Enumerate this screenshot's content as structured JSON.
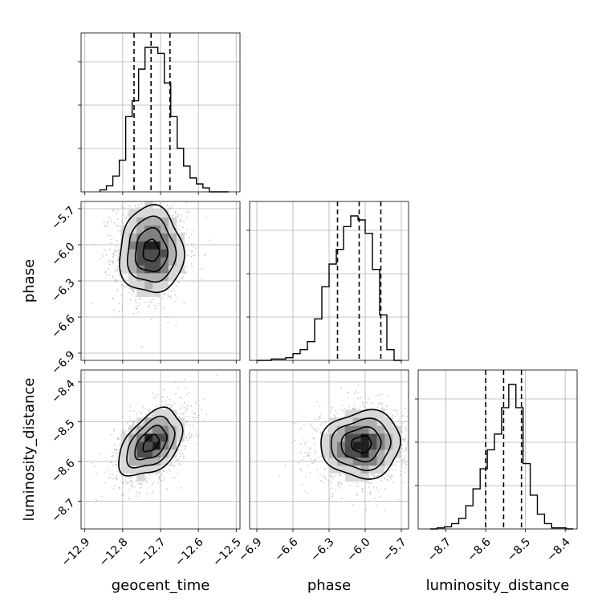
{
  "colors": {
    "hist_line": "#000000",
    "contour_line": "#000000",
    "grid": "#b0b0b0",
    "scatter_point": "#a8a8a8",
    "density_levels": [
      "#d8d8d8",
      "#b0b0b0",
      "#808080",
      "#4d4d4d",
      "#1f1f1f"
    ]
  },
  "chart_data": [
    {
      "type": "histogram",
      "panel": "geocent_time",
      "xlabel": "",
      "bin_range": [
        -12.86,
        -12.52
      ],
      "counts": [
        1,
        3,
        8,
        16,
        38,
        46,
        62,
        73,
        73,
        70,
        55,
        38,
        22,
        13,
        7,
        4,
        2,
        0,
        0,
        0
      ],
      "quantiles": [
        -12.77,
        -12.725,
        -12.675
      ],
      "xlim": [
        -12.91,
        -12.49
      ],
      "xticks": [
        -12.9,
        -12.8,
        -12.7,
        -12.6,
        -12.5
      ],
      "grid": true
    },
    {
      "type": "histogram",
      "panel": "phase",
      "xlabel": "",
      "bin_range": [
        -6.9,
        -5.7
      ],
      "counts": [
        0,
        0,
        1,
        1,
        2,
        5,
        8,
        14,
        31,
        55,
        72,
        83,
        100,
        108,
        105,
        95,
        68,
        34,
        8,
        0
      ],
      "quantiles": [
        -6.23,
        -6.05,
        -5.87
      ],
      "xlim": [
        -6.96,
        -5.64
      ],
      "xticks": [
        -6.9,
        -6.6,
        -6.3,
        -6.0,
        -5.7
      ],
      "grid": true
    },
    {
      "type": "histogram",
      "panel": "luminosity_distance",
      "xlabel": "luminosity_distance",
      "bin_range": [
        -8.74,
        -8.38
      ],
      "counts": [
        0,
        1,
        2,
        5,
        10,
        22,
        38,
        57,
        75,
        90,
        115,
        137,
        115,
        62,
        32,
        14,
        5,
        1,
        1,
        0
      ],
      "quantiles": [
        -8.6,
        -8.555,
        -8.51
      ],
      "xlim": [
        -8.77,
        -8.37
      ],
      "xticks": [
        -8.7,
        -8.6,
        -8.5,
        -8.4
      ],
      "grid": true
    },
    {
      "type": "heatmap",
      "panel": "phase vs geocent_time",
      "xlabel": "",
      "ylabel": "phase",
      "x_param": "geocent_time",
      "y_param": "phase",
      "mean": [
        -12.725,
        -6.05
      ],
      "std": [
        0.042,
        0.18
      ],
      "corr": 0.0,
      "xlim": [
        -12.91,
        -12.49
      ],
      "ylim": [
        -6.96,
        -5.64
      ],
      "xticks": [
        -12.9,
        -12.8,
        -12.7,
        -12.6,
        -12.5
      ],
      "yticks": [
        -5.7,
        -6.0,
        -6.3,
        -6.6,
        -6.9
      ],
      "contour_sigma": [
        0.5,
        1.0,
        1.5,
        2.0
      ],
      "grid": true
    },
    {
      "type": "heatmap",
      "panel": "luminosity_distance vs geocent_time",
      "xlabel": "geocent_time",
      "ylabel": "luminosity_distance",
      "x_param": "geocent_time",
      "y_param": "luminosity_distance",
      "mean": [
        -12.725,
        -8.555
      ],
      "std": [
        0.042,
        0.042
      ],
      "corr": 0.45,
      "xlim": [
        -12.91,
        -12.49
      ],
      "ylim": [
        -8.77,
        -8.37
      ],
      "xticks": [
        -12.9,
        -12.8,
        -12.7,
        -12.6,
        -12.5
      ],
      "yticks": [
        -8.4,
        -8.5,
        -8.6,
        -8.7
      ],
      "contour_sigma": [
        0.5,
        1.0,
        1.5,
        2.0
      ],
      "grid": true
    },
    {
      "type": "heatmap",
      "panel": "luminosity_distance vs phase",
      "xlabel": "phase",
      "ylabel": "",
      "x_param": "phase",
      "y_param": "luminosity_distance",
      "mean": [
        -6.03,
        -8.557
      ],
      "std": [
        0.165,
        0.042
      ],
      "corr": 0.05,
      "xlim": [
        -6.96,
        -5.64
      ],
      "ylim": [
        -8.77,
        -8.37
      ],
      "xticks": [
        -6.9,
        -6.6,
        -6.3,
        -6.0,
        -5.7
      ],
      "contour_sigma": [
        0.5,
        1.0,
        1.5,
        2.0
      ],
      "grid": true
    }
  ]
}
